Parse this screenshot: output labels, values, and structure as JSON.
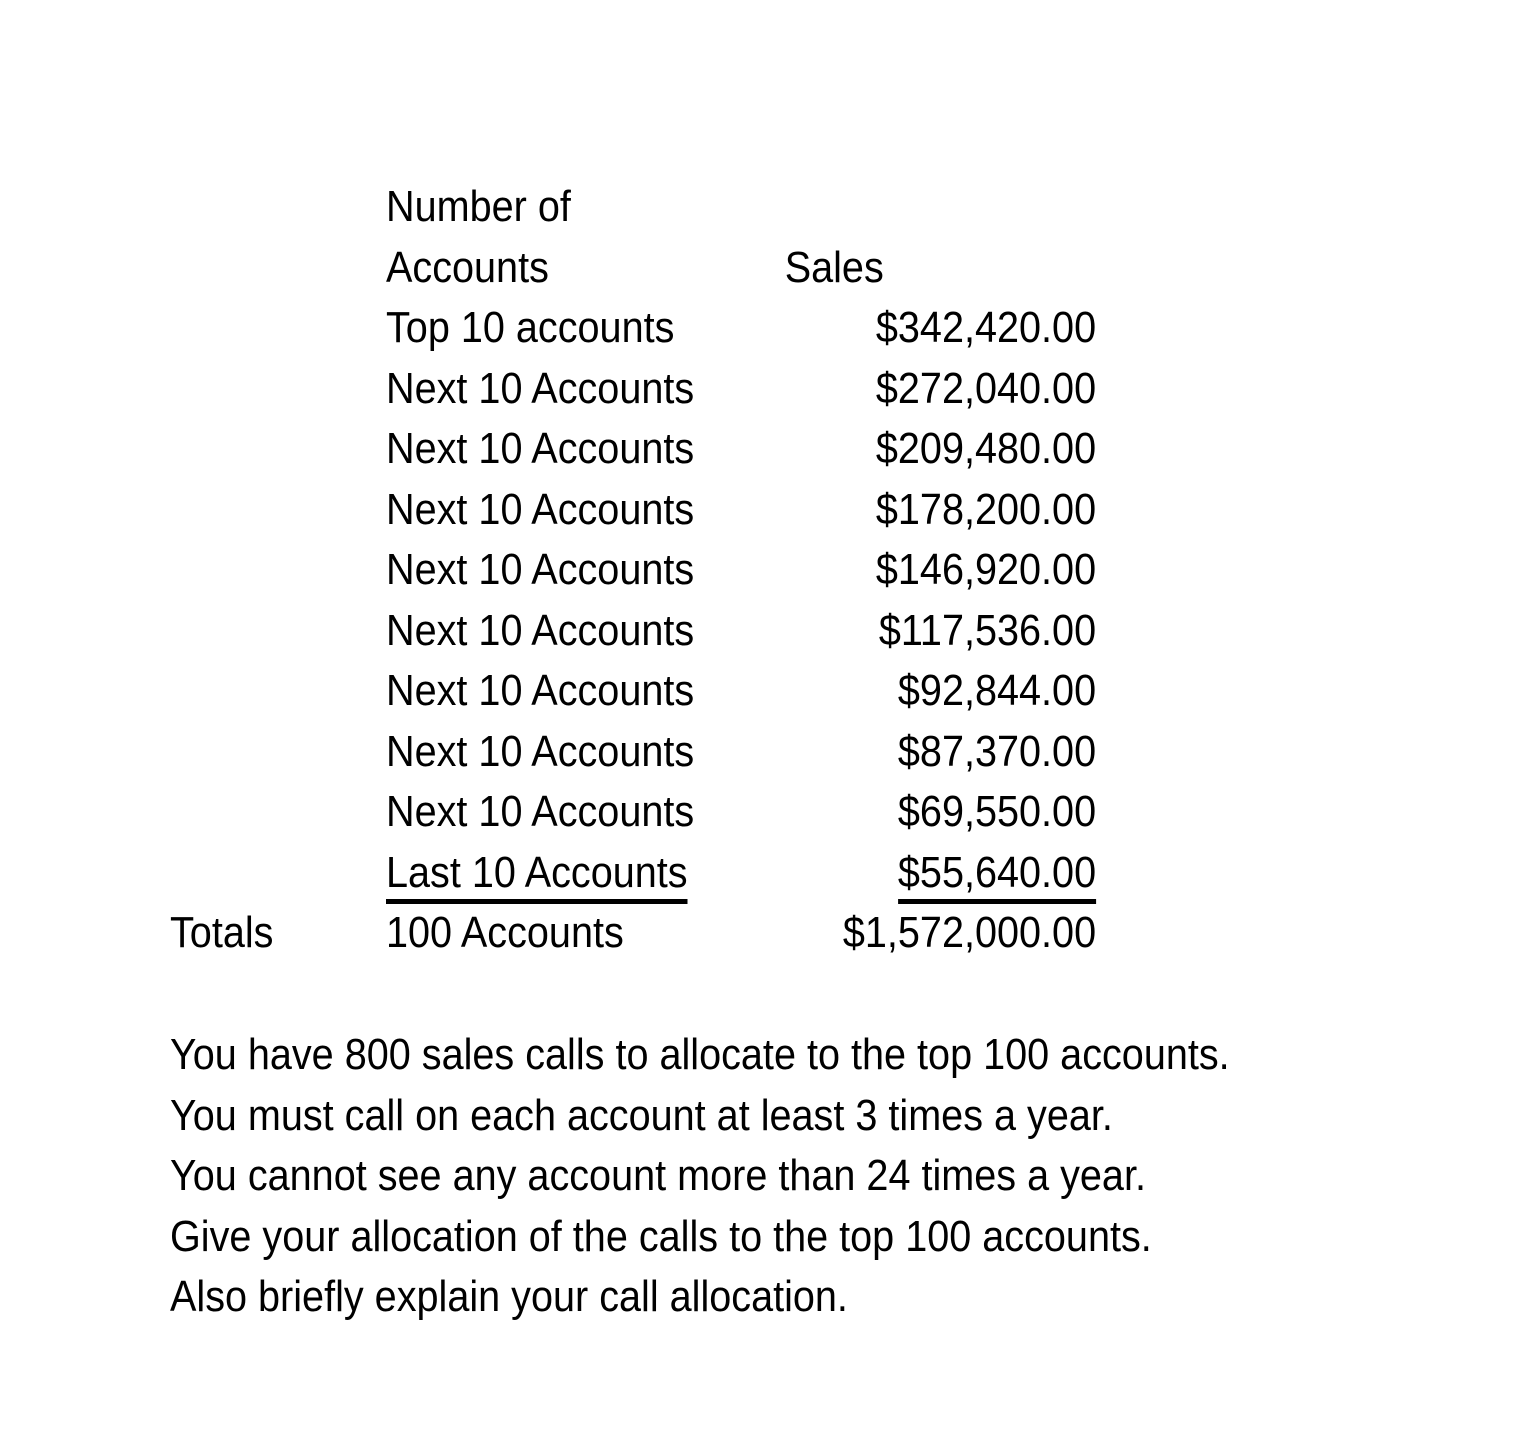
{
  "page": {
    "background_color": "#ffffff",
    "text_color": "#000000"
  },
  "table": {
    "header": {
      "accounts_line1": "Number of",
      "accounts_line2": "Accounts",
      "sales": "Sales"
    },
    "rows": [
      {
        "label": "Top 10 accounts",
        "sales": "$342,420.00"
      },
      {
        "label": "Next 10 Accounts",
        "sales": "$272,040.00"
      },
      {
        "label": "Next 10 Accounts",
        "sales": "$209,480.00"
      },
      {
        "label": "Next 10 Accounts",
        "sales": "$178,200.00"
      },
      {
        "label": "Next 10 Accounts",
        "sales": "$146,920.00"
      },
      {
        "label": "Next 10 Accounts",
        "sales": "$117,536.00"
      },
      {
        "label": "Next 10 Accounts",
        "sales": "$92,844.00"
      },
      {
        "label": "Next 10 Accounts",
        "sales": "$87,370.00"
      },
      {
        "label": "Next 10 Accounts",
        "sales": "$69,550.00"
      },
      {
        "label": "Last 10 Accounts",
        "sales": "$55,640.00"
      }
    ],
    "totals": {
      "label": "Totals",
      "accounts": "100 Accounts",
      "sales": "$1,572,000.00"
    }
  },
  "instructions": {
    "lines": [
      "You have 800 sales calls to allocate to the top 100 accounts.",
      "You must call on each account at least 3 times a year.",
      "You cannot see any account more than 24 times a year.",
      "Give your allocation of the calls to the top 100 accounts.",
      "Also briefly explain your call allocation."
    ]
  }
}
